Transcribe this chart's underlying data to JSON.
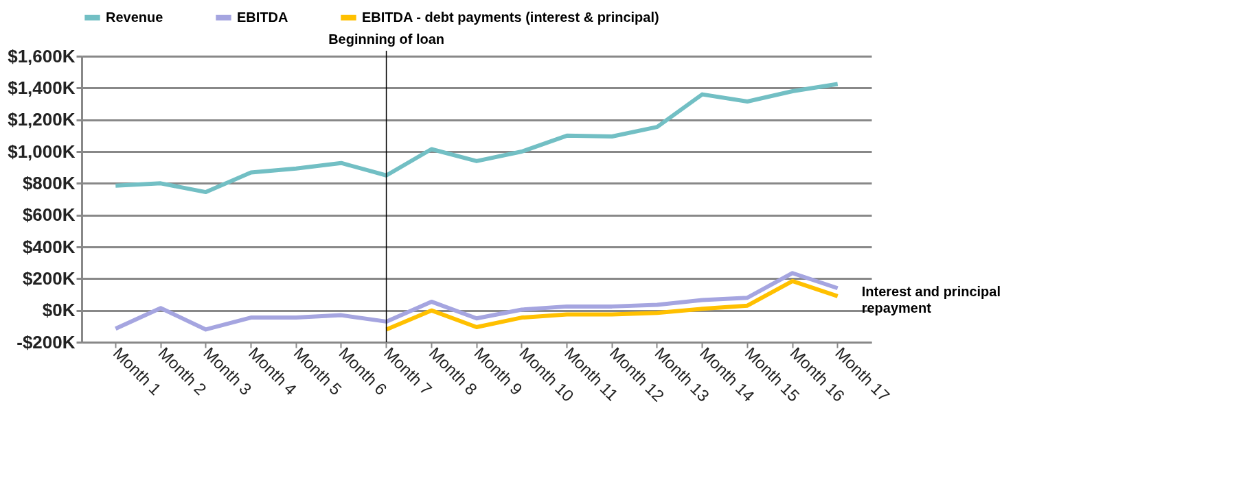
{
  "chart_data": {
    "type": "line",
    "categories": [
      "Month 1",
      "Month 2",
      "Month 3",
      "Month 4",
      "Month 5",
      "Month 6",
      "Month 7",
      "Month 8",
      "Month 9",
      "Month 10",
      "Month 11",
      "Month 12",
      "Month 13",
      "Month 14",
      "Month 15",
      "Month 16",
      "Month 17"
    ],
    "series": [
      {
        "name": "Revenue",
        "color": "#72bfc4",
        "values": [
          785,
          800,
          745,
          868,
          893,
          928,
          850,
          1015,
          940,
          1000,
          1100,
          1095,
          1155,
          1360,
          1315,
          1380,
          1425
        ]
      },
      {
        "name": "EBITDA",
        "color": "#a5a5e0",
        "values": [
          -115,
          15,
          -120,
          -45,
          -45,
          -30,
          -70,
          55,
          -50,
          5,
          25,
          25,
          35,
          65,
          80,
          235,
          140
        ]
      },
      {
        "name": "EBITDA -  debt payments (interest & principal)",
        "color": "#ffc000",
        "values": [
          null,
          null,
          null,
          null,
          null,
          null,
          -120,
          0,
          -105,
          -45,
          -25,
          -25,
          -15,
          10,
          30,
          185,
          90
        ]
      }
    ],
    "ylim": [
      -200,
      1600
    ],
    "yticks": [
      {
        "value": -200,
        "label": "-$200K"
      },
      {
        "value": 0,
        "label": "$0K"
      },
      {
        "value": 200,
        "label": "$200K"
      },
      {
        "value": 400,
        "label": "$400K"
      },
      {
        "value": 600,
        "label": "$600K"
      },
      {
        "value": 800,
        "label": "$800K"
      },
      {
        "value": 1000,
        "label": "$1,000K"
      },
      {
        "value": 1200,
        "label": "$1,200K"
      },
      {
        "value": 1400,
        "label": "$1,400K"
      },
      {
        "value": 1600,
        "label": "$1,600K"
      }
    ],
    "ref_lines": [
      {
        "axis": "x",
        "value": "Month 7",
        "label": "Beginning of loan",
        "color": "#000000"
      }
    ],
    "annotations": [
      {
        "text": "Interest and principal repayment",
        "x": "Month 17",
        "y": 115
      }
    ],
    "grid": "y",
    "legend": "top",
    "marker": "none",
    "line_style": "solid"
  }
}
